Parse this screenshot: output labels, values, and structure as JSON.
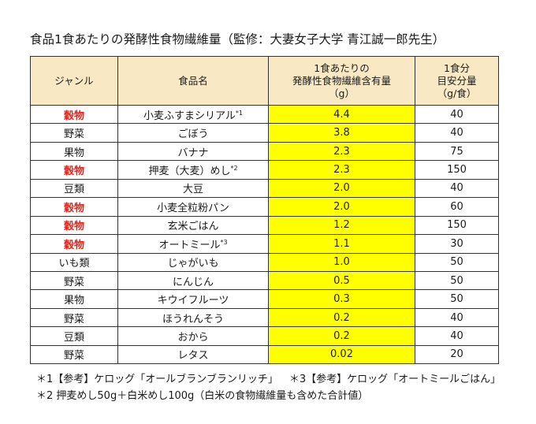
{
  "title": "食品1食あたりの発酵性食物繊維量（監修：大妻女子大学 青江誠一郎先生）",
  "headers": {
    "genre": "ジャンル",
    "food": "食品名",
    "fiber_line1": "1食あたりの",
    "fiber_line2": "発酵性食物繊維含有量",
    "fiber_line3": "（g）",
    "serving_line1": "1食分",
    "serving_line2": "目安分量",
    "serving_line3": "（g/食）"
  },
  "rows": [
    {
      "genre": "穀物",
      "grain": true,
      "food": "小麦ふすまシリアル",
      "mark": "*1",
      "fiber": "4.4",
      "serving": "40"
    },
    {
      "genre": "野菜",
      "grain": false,
      "food": "ごぼう",
      "mark": "",
      "fiber": "3.8",
      "serving": "40"
    },
    {
      "genre": "果物",
      "grain": false,
      "food": "バナナ",
      "mark": "",
      "fiber": "2.3",
      "serving": "75"
    },
    {
      "genre": "穀物",
      "grain": true,
      "food": "押麦（大麦）めし",
      "mark": "*2",
      "fiber": "2.3",
      "serving": "150"
    },
    {
      "genre": "豆類",
      "grain": false,
      "food": "大豆",
      "mark": "",
      "fiber": "2.0",
      "serving": "40"
    },
    {
      "genre": "穀物",
      "grain": true,
      "food": "小麦全粒粉パン",
      "mark": "",
      "fiber": "2.0",
      "serving": "60"
    },
    {
      "genre": "穀物",
      "grain": true,
      "food": "玄米ごはん",
      "mark": "",
      "fiber": "1.2",
      "serving": "150"
    },
    {
      "genre": "穀物",
      "grain": true,
      "food": "オートミール",
      "mark": "*3",
      "fiber": "1.1",
      "serving": "30"
    },
    {
      "genre": "いも類",
      "grain": false,
      "food": "じゃがいも",
      "mark": "",
      "fiber": "1.0",
      "serving": "50"
    },
    {
      "genre": "野菜",
      "grain": false,
      "food": "にんじん",
      "mark": "",
      "fiber": "0.5",
      "serving": "50"
    },
    {
      "genre": "果物",
      "grain": false,
      "food": "キウイフルーツ",
      "mark": "",
      "fiber": "0.3",
      "serving": "50"
    },
    {
      "genre": "野菜",
      "grain": false,
      "food": "ほうれんそう",
      "mark": "",
      "fiber": "0.2",
      "serving": "40"
    },
    {
      "genre": "豆類",
      "grain": false,
      "food": "おから",
      "mark": "",
      "fiber": "0.2",
      "serving": "40"
    },
    {
      "genre": "野菜",
      "grain": false,
      "food": "レタス",
      "mark": "",
      "fiber": "0.02",
      "serving": "20"
    }
  ],
  "notes": {
    "note1a": "＊1【参考】ケロッグ「オールブランブランリッチ」",
    "note1b": "＊3【参考】ケロッグ「オートミールごはん」",
    "note2": "＊2 押麦めし50g＋白米めし100g（白米の食物繊維量も含めた合計値）"
  },
  "colors": {
    "header_bg": "#f8e9c4",
    "highlight": "#ffff00",
    "grain_text": "#e8231a"
  }
}
